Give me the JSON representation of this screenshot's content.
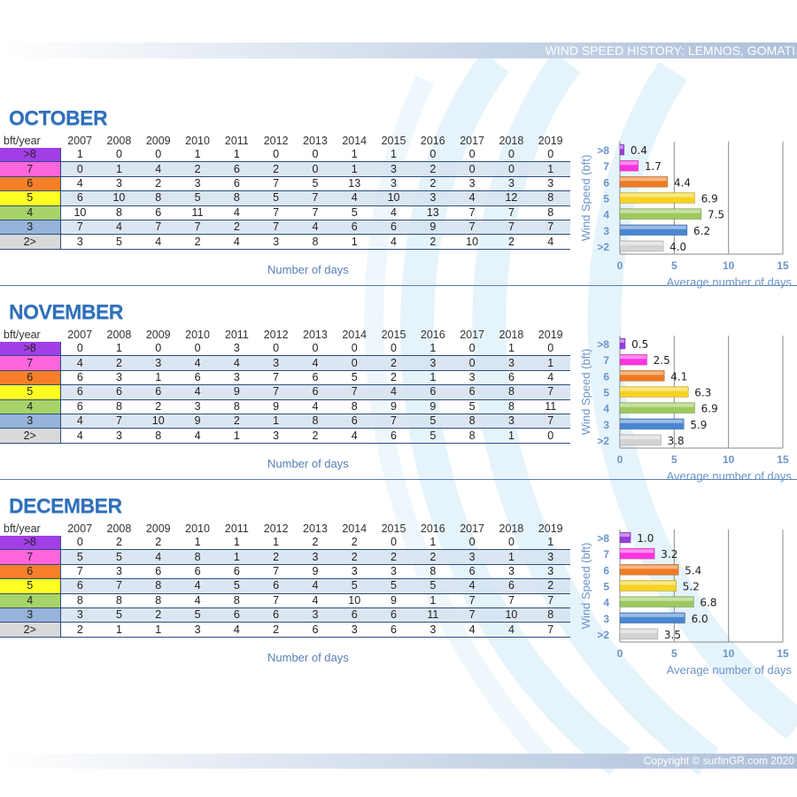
{
  "header": {
    "title": "WIND SPEED HISTORY: LEMNOS, GOMATI"
  },
  "footer": {
    "copyright": "Copyright © surfinGR.com 2020"
  },
  "table_header": "bft/year",
  "years": [
    "2007",
    "2008",
    "2009",
    "2010",
    "2011",
    "2012",
    "2013",
    "2014",
    "2015",
    "2016",
    "2017",
    "2018",
    "2019"
  ],
  "bft_levels": [
    ">8",
    "7",
    "6",
    "5",
    "4",
    "3",
    "2>"
  ],
  "bft_colors": [
    "#a23fe6",
    "#ff66dd",
    "#f77f2a",
    "#ffff22",
    "#a6d468",
    "#97b3d9",
    "#d9d9d9"
  ],
  "bar_colors": [
    "#9a3be0",
    "#ff33e0",
    "#ef7a22",
    "#f6d321",
    "#9dc95e",
    "#4a86d0",
    "#d3d3d3"
  ],
  "table_xlabel": "Number of days",
  "chart_data": [
    {
      "type": "bar",
      "orientation": "horizontal",
      "month": "OCTOBER",
      "categories": [
        ">8",
        "7",
        "6",
        "5",
        "4",
        "3",
        ">2"
      ],
      "values": [
        0.4,
        1.7,
        4.4,
        6.9,
        7.5,
        6.2,
        4.0
      ],
      "xlabel": "Average number of days",
      "ylabel": "Wind Speed (bft)",
      "xlim": [
        0,
        15
      ],
      "xticks": [
        "0",
        "5",
        "10",
        "15"
      ],
      "grid": true,
      "table": [
        [
          1,
          0,
          0,
          1,
          1,
          0,
          0,
          1,
          1,
          0,
          0,
          0,
          0
        ],
        [
          0,
          1,
          4,
          2,
          6,
          2,
          0,
          1,
          3,
          2,
          0,
          0,
          1
        ],
        [
          4,
          3,
          2,
          3,
          6,
          7,
          5,
          13,
          3,
          2,
          3,
          3,
          3
        ],
        [
          6,
          10,
          8,
          5,
          8,
          5,
          7,
          4,
          10,
          3,
          4,
          12,
          8
        ],
        [
          10,
          8,
          6,
          11,
          4,
          7,
          7,
          5,
          4,
          13,
          7,
          7,
          8
        ],
        [
          7,
          4,
          7,
          7,
          2,
          7,
          4,
          6,
          6,
          9,
          7,
          7,
          7
        ],
        [
          3,
          5,
          4,
          2,
          4,
          3,
          8,
          1,
          4,
          2,
          10,
          2,
          4
        ]
      ]
    },
    {
      "type": "bar",
      "orientation": "horizontal",
      "month": "NOVEMBER",
      "categories": [
        ">8",
        "7",
        "6",
        "5",
        "4",
        "3",
        ">2"
      ],
      "values": [
        0.5,
        2.5,
        4.1,
        6.3,
        6.9,
        5.9,
        3.8
      ],
      "xlabel": "Average number of days",
      "ylabel": "Wind Speed (bft)",
      "xlim": [
        0,
        15
      ],
      "xticks": [
        "0",
        "5",
        "10",
        "15"
      ],
      "grid": true,
      "table": [
        [
          0,
          1,
          0,
          0,
          3,
          0,
          0,
          0,
          0,
          1,
          0,
          1,
          0
        ],
        [
          4,
          2,
          3,
          4,
          4,
          3,
          4,
          0,
          2,
          3,
          0,
          3,
          1
        ],
        [
          6,
          3,
          1,
          6,
          3,
          7,
          6,
          5,
          2,
          1,
          3,
          6,
          4
        ],
        [
          6,
          6,
          6,
          4,
          9,
          7,
          6,
          7,
          4,
          6,
          6,
          8,
          7
        ],
        [
          6,
          8,
          2,
          3,
          8,
          9,
          4,
          8,
          9,
          9,
          5,
          8,
          11
        ],
        [
          4,
          7,
          10,
          9,
          2,
          1,
          8,
          6,
          7,
          5,
          8,
          3,
          7
        ],
        [
          4,
          3,
          8,
          4,
          1,
          3,
          2,
          4,
          6,
          5,
          8,
          1,
          0
        ]
      ]
    },
    {
      "type": "bar",
      "orientation": "horizontal",
      "month": "DECEMBER",
      "categories": [
        ">8",
        "7",
        "6",
        "5",
        "4",
        "3",
        ">2"
      ],
      "values": [
        1.0,
        3.2,
        5.4,
        5.2,
        6.8,
        6.0,
        3.5
      ],
      "xlabel": "Average number of days",
      "ylabel": "Wind Speed (bft)",
      "xlim": [
        0,
        15
      ],
      "xticks": [
        "0",
        "5",
        "10",
        "15"
      ],
      "grid": true,
      "table": [
        [
          0,
          2,
          2,
          1,
          1,
          1,
          2,
          2,
          0,
          1,
          0,
          0,
          1
        ],
        [
          5,
          5,
          4,
          8,
          1,
          2,
          3,
          2,
          2,
          2,
          3,
          1,
          3
        ],
        [
          7,
          3,
          6,
          6,
          6,
          7,
          9,
          3,
          3,
          8,
          6,
          3,
          3
        ],
        [
          6,
          7,
          8,
          4,
          5,
          6,
          4,
          5,
          5,
          5,
          4,
          6,
          2
        ],
        [
          8,
          8,
          8,
          4,
          8,
          7,
          4,
          10,
          9,
          1,
          7,
          7,
          7
        ],
        [
          3,
          5,
          2,
          5,
          6,
          6,
          3,
          6,
          6,
          11,
          7,
          10,
          8
        ],
        [
          2,
          1,
          1,
          3,
          4,
          2,
          6,
          3,
          6,
          3,
          4,
          4,
          7
        ]
      ]
    }
  ]
}
